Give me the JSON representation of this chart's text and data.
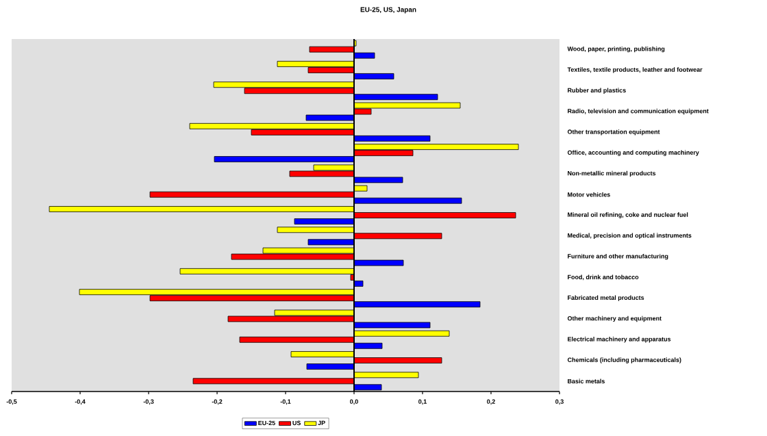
{
  "chart_data": {
    "type": "bar",
    "orientation": "horizontal",
    "title": "EU-25, US, Japan",
    "categories": [
      "Wood, paper, printing, publishing",
      "Textiles, textile products, leather and footwear",
      "Rubber and plastics",
      "Radio, television and communication equipment",
      "Other transportation equipment",
      "Office, accounting and computing machinery",
      "Non-metallic mineral products",
      "Motor vehicles",
      "Mineral oil refining, coke and nuclear fuel",
      "Medical, precision and optical instruments",
      "Furniture and other manufacturing",
      "Food, drink and tobacco",
      "Fabricated metal products",
      "Other machinery and equipment",
      "Electrical machinery and apparatus",
      "Chemicals (including pharmaceuticals)",
      "Basic metals"
    ],
    "series": [
      {
        "name": "EU-25",
        "color": "#0000ff",
        "values": [
          0.03,
          0.058,
          0.122,
          -0.07,
          0.111,
          -0.204,
          0.071,
          0.157,
          -0.087,
          -0.067,
          0.072,
          0.013,
          0.184,
          0.111,
          0.041,
          -0.069,
          0.04
        ]
      },
      {
        "name": "US",
        "color": "#ff0000",
        "values": [
          -0.065,
          -0.067,
          -0.16,
          0.025,
          -0.15,
          0.086,
          -0.094,
          -0.298,
          0.236,
          0.128,
          -0.179,
          -0.005,
          -0.298,
          -0.184,
          -0.167,
          0.128,
          -0.235
        ]
      },
      {
        "name": "JP",
        "color": "#ffff00",
        "values": [
          0.003,
          -0.112,
          -0.205,
          0.155,
          -0.24,
          0.24,
          -0.059,
          0.019,
          -0.445,
          -0.112,
          -0.133,
          -0.254,
          -0.401,
          -0.116,
          0.139,
          -0.092,
          0.094
        ]
      }
    ],
    "xlim": [
      -0.5,
      0.3
    ],
    "xticks": [
      {
        "value": -0.5,
        "label": "-0,5"
      },
      {
        "value": -0.4,
        "label": "-0,4"
      },
      {
        "value": -0.3,
        "label": "-0,3"
      },
      {
        "value": -0.2,
        "label": "-0,2"
      },
      {
        "value": -0.1,
        "label": "-0,1"
      },
      {
        "value": 0,
        "label": "0,0"
      },
      {
        "value": 0.1,
        "label": "0,1"
      },
      {
        "value": 0.2,
        "label": "0,2"
      },
      {
        "value": 0.3,
        "label": "0,3"
      }
    ],
    "legend": "bottom"
  }
}
